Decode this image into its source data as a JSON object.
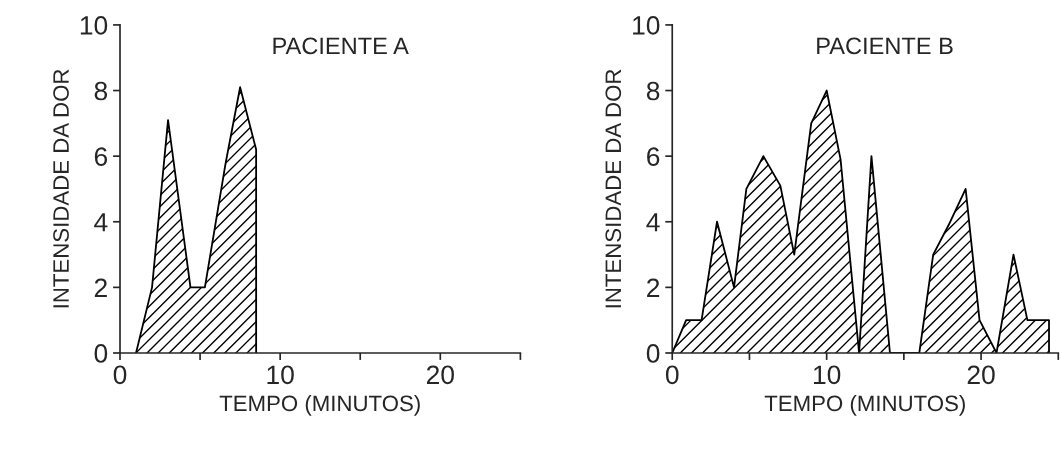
{
  "chart_data": [
    {
      "type": "area",
      "title": "PACIENTE A",
      "xlabel": "TEMPO (MINUTOS)",
      "ylabel": "INTENSIDADE DA DOR",
      "series": [
        {
          "color": "#000000",
          "x": [
            1,
            2,
            3,
            4.4,
            5.3,
            6.6,
            7.5,
            8.5,
            8.5
          ],
          "values": [
            0,
            2,
            7.1,
            2,
            2,
            5.8,
            8.1,
            6.2,
            0
          ]
        }
      ],
      "xlim": [
        0,
        25
      ],
      "xticks": [
        0,
        {
          "value": 5,
          "label": null
        },
        10,
        {
          "value": 15,
          "label": null
        },
        20,
        {
          "value": 25,
          "label": null
        }
      ],
      "ylim": [
        0,
        10
      ],
      "yticks": [
        0,
        2,
        4,
        6,
        8,
        10
      ],
      "grid": false
    },
    {
      "type": "area",
      "title": "PACIENTE B",
      "xlabel": "TEMPO (MINUTOS)",
      "ylabel": "INTENSIDADE DA DOR",
      "series": [
        {
          "color": "#000000",
          "x": [
            0,
            0.9,
            1.9,
            2.9,
            4,
            4.8,
            5.9,
            7,
            7.9,
            9,
            10,
            10.9,
            12.1,
            12.9,
            14.1,
            16,
            16.9,
            17.9,
            19,
            19.9,
            21,
            22.1,
            23,
            24,
            24.4,
            24.4
          ],
          "values": [
            0,
            1,
            1,
            4,
            2,
            5,
            6,
            5.1,
            3,
            7,
            8,
            5.9,
            0,
            6,
            0,
            0,
            3,
            3.9,
            5,
            1,
            0,
            3,
            1,
            1,
            1,
            0
          ]
        }
      ],
      "xlim": [
        0,
        25
      ],
      "xticks": [
        0,
        {
          "value": 5,
          "label": null
        },
        10,
        {
          "value": 15,
          "label": null
        },
        20,
        {
          "value": 25,
          "label": null
        }
      ],
      "ylim": [
        0,
        10
      ],
      "yticks": [
        0,
        2,
        4,
        6,
        8,
        10
      ],
      "grid": false
    }
  ]
}
